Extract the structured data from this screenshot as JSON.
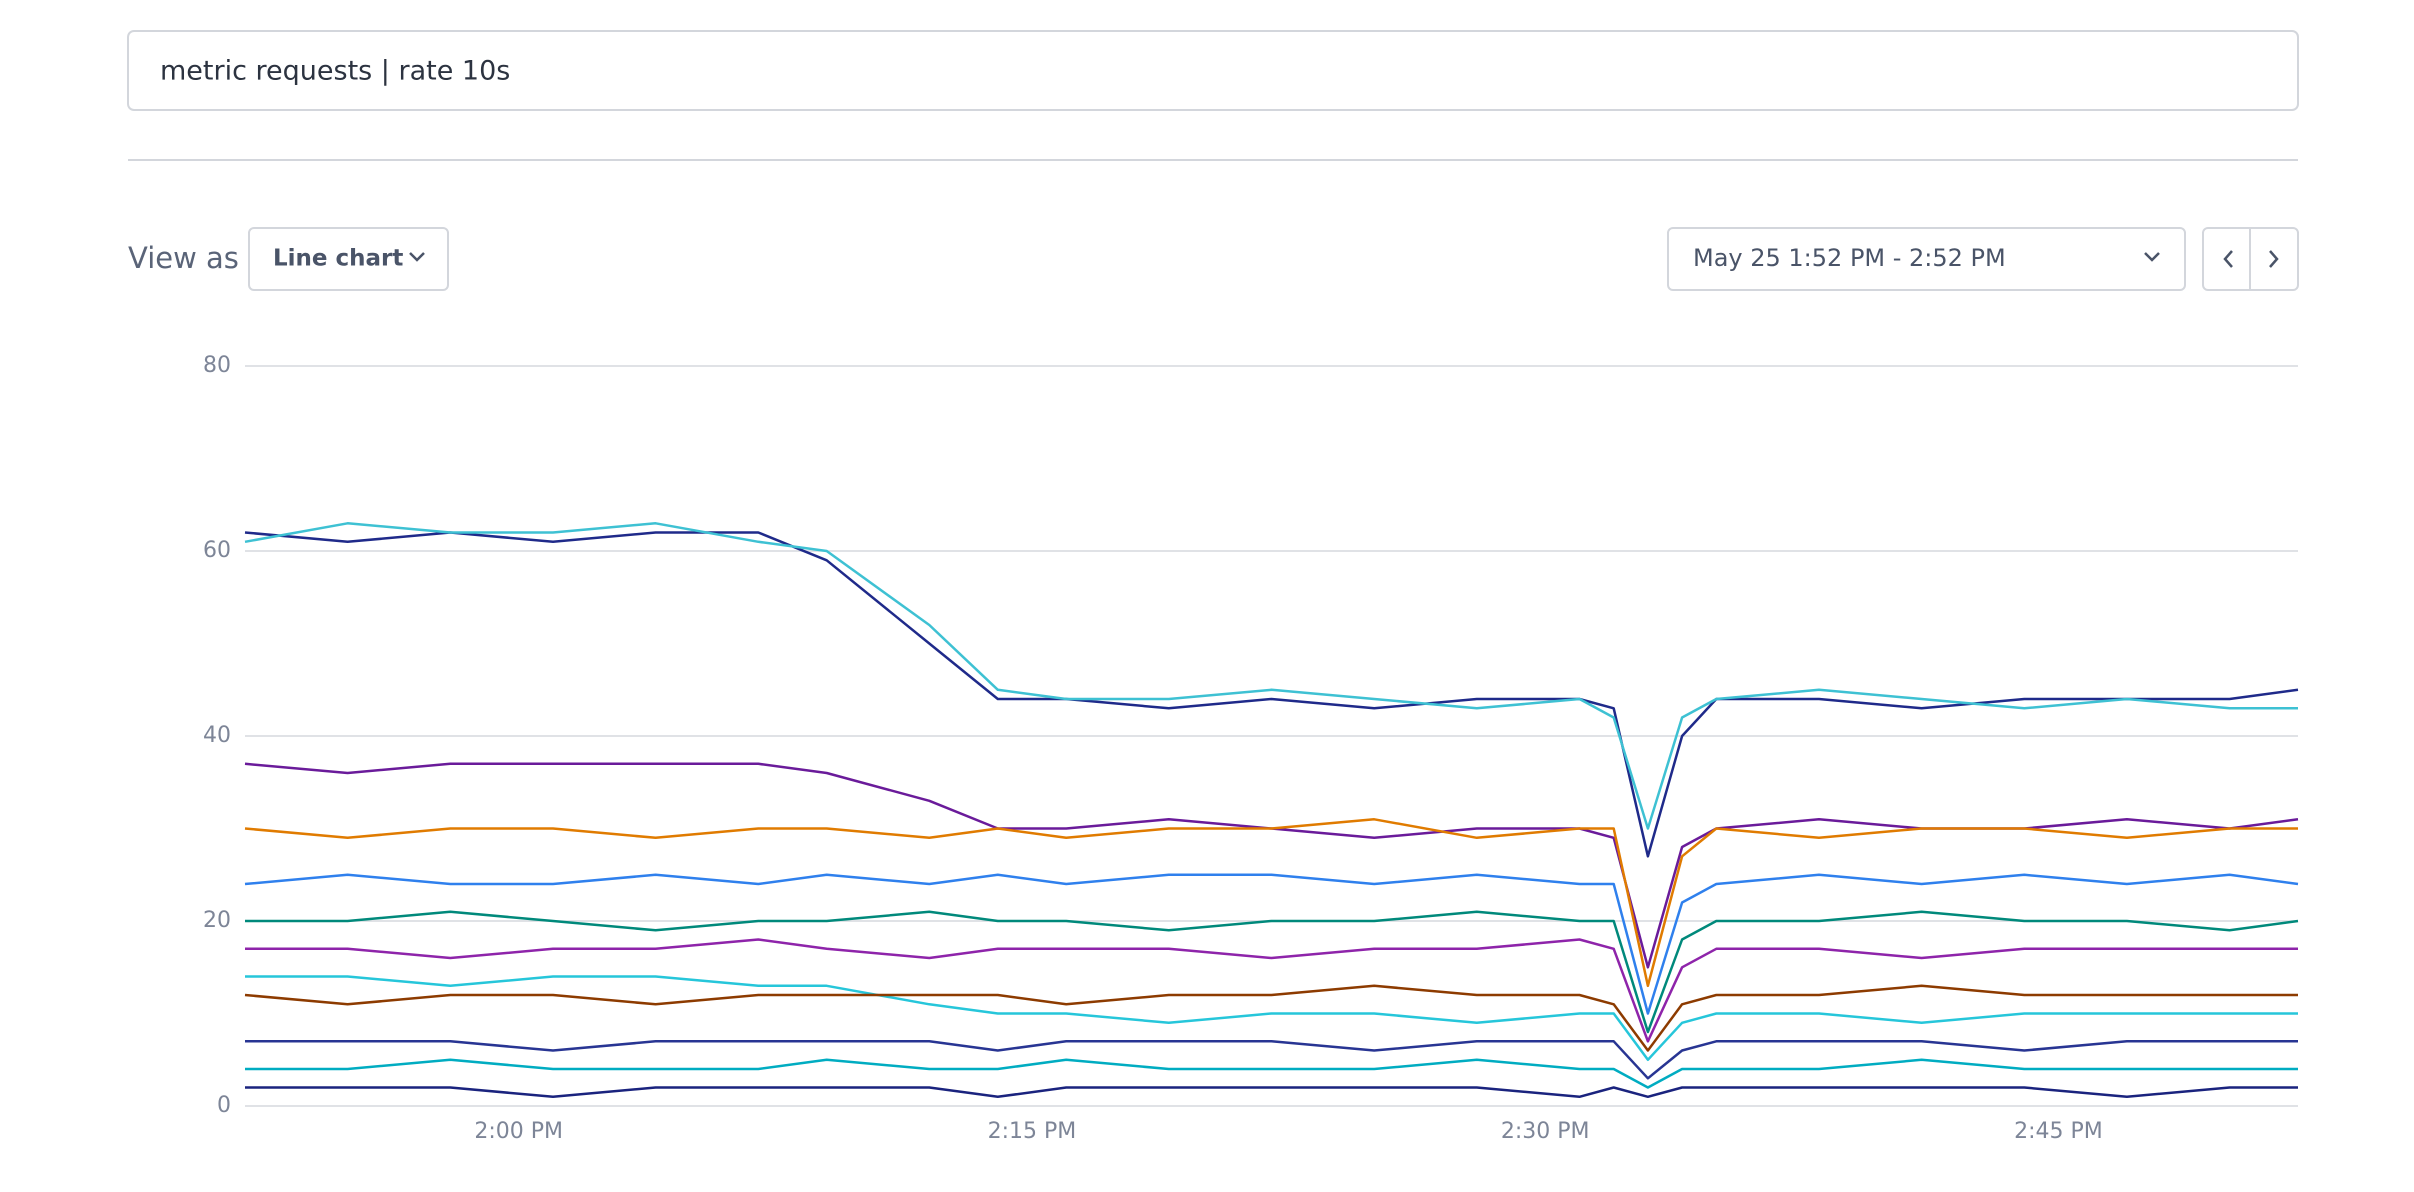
{
  "query": "metric requests | rate 10s",
  "view_as_label": "View as",
  "view_as_value": "Line chart",
  "time_range": "May 25 1:52 PM - 2:52 PM",
  "chart_data": {
    "type": "line",
    "x": [
      "1:52 PM",
      "1:55 PM",
      "1:58 PM",
      "2:01 PM",
      "2:04 PM",
      "2:07 PM",
      "2:09 PM",
      "2:12 PM",
      "2:14 PM",
      "2:16 PM",
      "2:19 PM",
      "2:22 PM",
      "2:25 PM",
      "2:28 PM",
      "2:31 PM",
      "2:32 PM",
      "2:33 PM",
      "2:34 PM",
      "2:35 PM",
      "2:38 PM",
      "2:41 PM",
      "2:44 PM",
      "2:47 PM",
      "2:50 PM",
      "2:52 PM"
    ],
    "xlim": [
      "1:52 PM",
      "2:52 PM"
    ],
    "xticks": [
      "2:00 PM",
      "2:15 PM",
      "2:30 PM",
      "2:45 PM"
    ],
    "ylim": [
      0,
      80
    ],
    "yticks": [
      0,
      20,
      40,
      60,
      80
    ],
    "grid": true,
    "series": [
      {
        "color": "#1f2a8a",
        "values": [
          62,
          61,
          62,
          61,
          62,
          62,
          59,
          50,
          44,
          44,
          43,
          44,
          43,
          44,
          44,
          43,
          27,
          40,
          44,
          44,
          43,
          44,
          44,
          44,
          45
        ]
      },
      {
        "color": "#3ec1d3",
        "values": [
          61,
          63,
          62,
          62,
          63,
          61,
          60,
          52,
          45,
          44,
          44,
          45,
          44,
          43,
          44,
          42,
          30,
          42,
          44,
          45,
          44,
          43,
          44,
          43,
          43
        ]
      },
      {
        "color": "#6a1b9a",
        "values": [
          37,
          36,
          37,
          37,
          37,
          37,
          36,
          33,
          30,
          30,
          31,
          30,
          29,
          30,
          30,
          29,
          15,
          28,
          30,
          31,
          30,
          30,
          31,
          30,
          31
        ]
      },
      {
        "color": "#e07b00",
        "values": [
          30,
          29,
          30,
          30,
          29,
          30,
          30,
          29,
          30,
          29,
          30,
          30,
          31,
          29,
          30,
          30,
          13,
          27,
          30,
          29,
          30,
          30,
          29,
          30,
          30
        ]
      },
      {
        "color": "#2f80ed",
        "values": [
          24,
          25,
          24,
          24,
          25,
          24,
          25,
          24,
          25,
          24,
          25,
          25,
          24,
          25,
          24,
          24,
          10,
          22,
          24,
          25,
          24,
          25,
          24,
          25,
          24
        ]
      },
      {
        "color": "#00897b",
        "values": [
          20,
          20,
          21,
          20,
          19,
          20,
          20,
          21,
          20,
          20,
          19,
          20,
          20,
          21,
          20,
          20,
          8,
          18,
          20,
          20,
          21,
          20,
          20,
          19,
          20
        ]
      },
      {
        "color": "#8e24aa",
        "values": [
          17,
          17,
          16,
          17,
          17,
          18,
          17,
          16,
          17,
          17,
          17,
          16,
          17,
          17,
          18,
          17,
          7,
          15,
          17,
          17,
          16,
          17,
          17,
          17,
          17
        ]
      },
      {
        "color": "#26c6da",
        "values": [
          14,
          14,
          13,
          14,
          14,
          13,
          13,
          11,
          10,
          10,
          9,
          10,
          10,
          9,
          10,
          10,
          5,
          9,
          10,
          10,
          9,
          10,
          10,
          10,
          10
        ]
      },
      {
        "color": "#8d3b00",
        "values": [
          12,
          11,
          12,
          12,
          11,
          12,
          12,
          12,
          12,
          11,
          12,
          12,
          13,
          12,
          12,
          11,
          6,
          11,
          12,
          12,
          13,
          12,
          12,
          12,
          12
        ]
      },
      {
        "color": "#283593",
        "values": [
          7,
          7,
          7,
          6,
          7,
          7,
          7,
          7,
          6,
          7,
          7,
          7,
          6,
          7,
          7,
          7,
          3,
          6,
          7,
          7,
          7,
          6,
          7,
          7,
          7
        ]
      },
      {
        "color": "#00acc1",
        "values": [
          4,
          4,
          5,
          4,
          4,
          4,
          5,
          4,
          4,
          5,
          4,
          4,
          4,
          5,
          4,
          4,
          2,
          4,
          4,
          4,
          5,
          4,
          4,
          4,
          4
        ]
      },
      {
        "color": "#1a237e",
        "values": [
          2,
          2,
          2,
          1,
          2,
          2,
          2,
          2,
          1,
          2,
          2,
          2,
          2,
          2,
          1,
          2,
          1,
          2,
          2,
          2,
          2,
          2,
          1,
          2,
          2
        ]
      }
    ]
  }
}
